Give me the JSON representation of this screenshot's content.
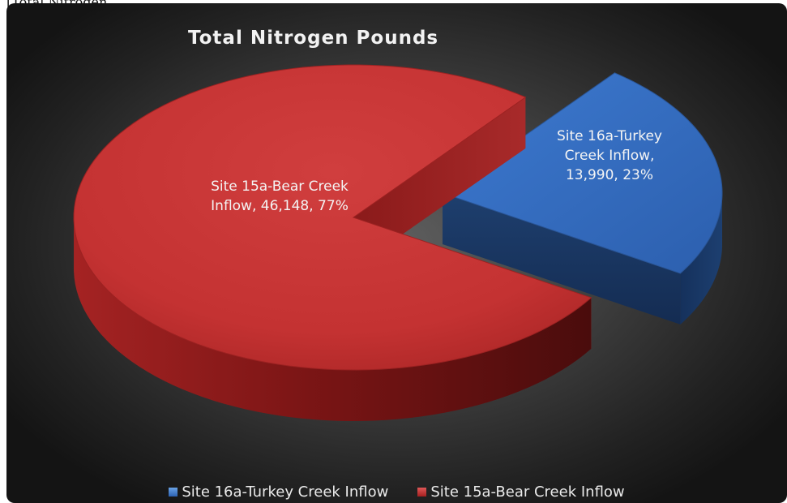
{
  "caption": "[Total Nitrogen",
  "chart_data": {
    "type": "pie",
    "style": "3d-exploded",
    "title": "Total Nitrogen Pounds",
    "legend_position": "bottom",
    "slices": [
      {
        "name": "Site 16a-Turkey Creek Inflow",
        "value": 13990,
        "value_label": "13,990",
        "percent": 23,
        "percent_label": "23%",
        "color": "#3a74c8",
        "label_lines": [
          "Site 16a-Turkey",
          "Creek Inflow,",
          "13,990, 23%"
        ]
      },
      {
        "name": "Site 15a-Bear Creek Inflow",
        "value": 46148,
        "value_label": "46,148",
        "percent": 77,
        "percent_label": "77%",
        "color": "#c93636",
        "label_lines": [
          "Site 15a-Bear Creek",
          "Inflow, 46,148, 77%"
        ]
      }
    ]
  }
}
